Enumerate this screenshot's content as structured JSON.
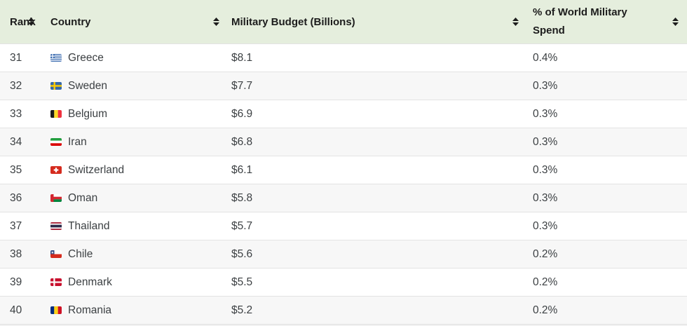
{
  "table": {
    "columns": [
      {
        "label": "Rank",
        "sort_icon": "sort-arrows"
      },
      {
        "label": "Country",
        "sort_icon": "sort-arrows"
      },
      {
        "label": "Military Budget (Billions)",
        "sort_icon": "sort-arrows"
      },
      {
        "label": "% of World Military Spend",
        "sort_icon": "sort-arrows"
      }
    ],
    "rows": [
      {
        "rank": "31",
        "country": "Greece",
        "flag": "greece",
        "budget": "$8.1",
        "share": "0.4%"
      },
      {
        "rank": "32",
        "country": "Sweden",
        "flag": "sweden",
        "budget": "$7.7",
        "share": "0.3%"
      },
      {
        "rank": "33",
        "country": "Belgium",
        "flag": "belgium",
        "budget": "$6.9",
        "share": "0.3%"
      },
      {
        "rank": "34",
        "country": "Iran",
        "flag": "iran",
        "budget": "$6.8",
        "share": "0.3%"
      },
      {
        "rank": "35",
        "country": "Switzerland",
        "flag": "switzerland",
        "budget": "$6.1",
        "share": "0.3%"
      },
      {
        "rank": "36",
        "country": "Oman",
        "flag": "oman",
        "budget": "$5.8",
        "share": "0.3%"
      },
      {
        "rank": "37",
        "country": "Thailand",
        "flag": "thailand",
        "budget": "$5.7",
        "share": "0.3%"
      },
      {
        "rank": "38",
        "country": "Chile",
        "flag": "chile",
        "budget": "$5.6",
        "share": "0.2%"
      },
      {
        "rank": "39",
        "country": "Denmark",
        "flag": "denmark",
        "budget": "$5.5",
        "share": "0.2%"
      },
      {
        "rank": "40",
        "country": "Romania",
        "flag": "romania",
        "budget": "$5.2",
        "share": "0.2%"
      }
    ]
  },
  "colors": {
    "header_bg": "#e5eedd",
    "header_text": "#1c1c1c",
    "row_text": "#3c4043",
    "row_alt_bg": "#f7f7f7",
    "divider": "#e3e3e3"
  }
}
